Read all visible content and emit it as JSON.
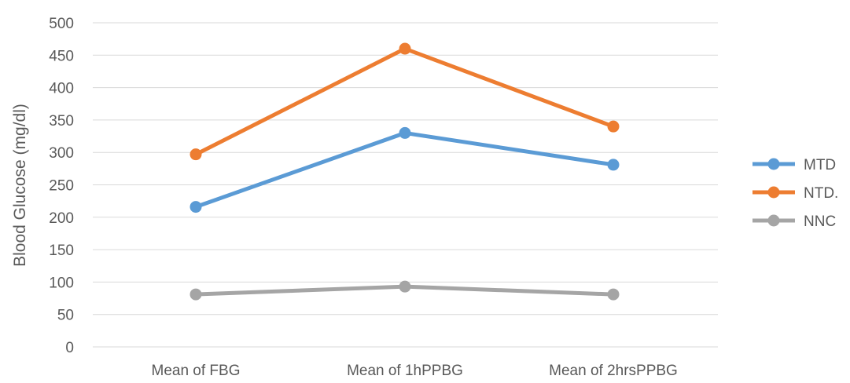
{
  "chart_data": {
    "type": "line",
    "title": "",
    "xlabel": "",
    "ylabel": "Blood Glucose (mg/dl)",
    "categories": [
      "Mean of FBG",
      "Mean of 1hPPBG",
      "Mean of 2hrsPPBG"
    ],
    "ylim": [
      0,
      500
    ],
    "yticks": [
      0,
      50,
      100,
      150,
      200,
      250,
      300,
      350,
      400,
      450,
      500
    ],
    "grid": true,
    "legend_position": "right",
    "series": [
      {
        "name": "MTD",
        "values": [
          216,
          330,
          281
        ],
        "color": "#5B9BD5"
      },
      {
        "name": "NTD.",
        "values": [
          297,
          460,
          340
        ],
        "color": "#ED7D31"
      },
      {
        "name": "NNC",
        "values": [
          81,
          93,
          81
        ],
        "color": "#A5A5A5"
      }
    ]
  }
}
